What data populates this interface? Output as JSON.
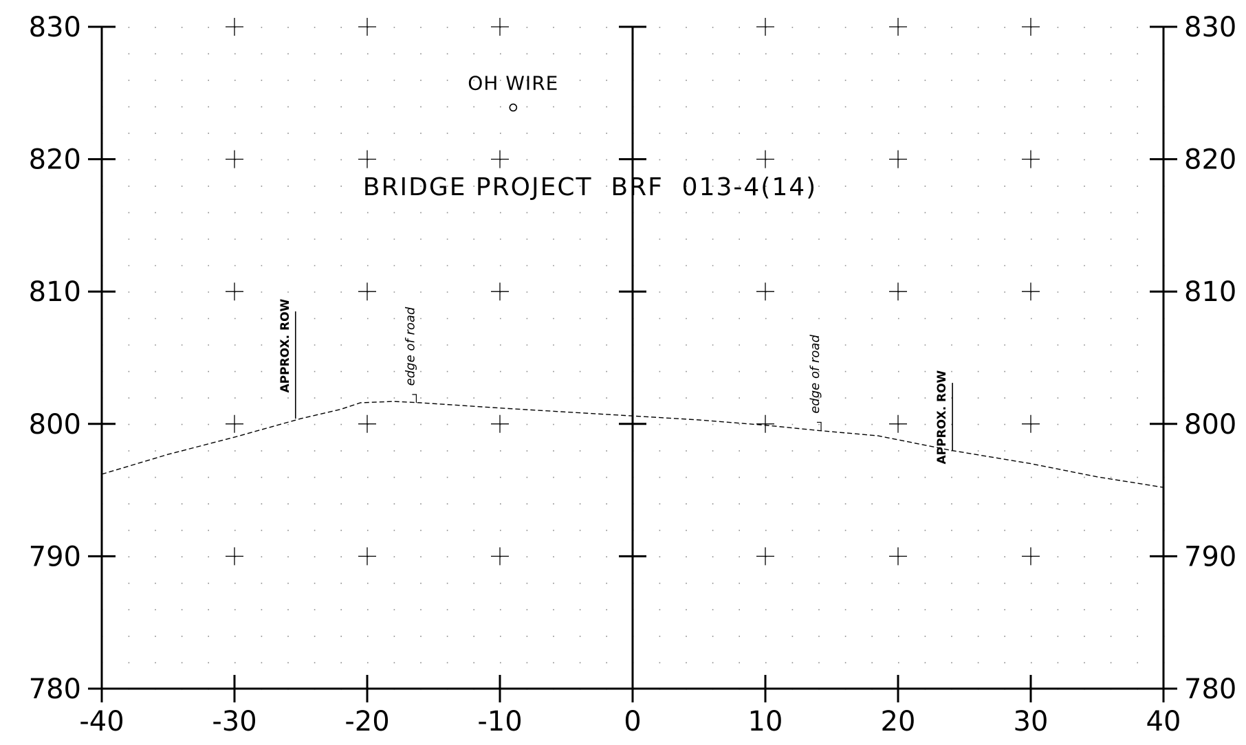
{
  "chart_data": {
    "type": "line",
    "title": "BRIDGE PROJECT  BRF  013-4(14)",
    "xlabel": "",
    "ylabel": "",
    "xlim": [
      -40,
      40
    ],
    "ylim": [
      780,
      830
    ],
    "x_ticks": [
      -40,
      -30,
      -20,
      -10,
      0,
      10,
      20,
      30,
      40
    ],
    "x_tick_labels": [
      "-40",
      "-30",
      "-20",
      "-10",
      "0",
      "10",
      "20",
      "30",
      "40"
    ],
    "y_ticks": [
      780,
      790,
      800,
      810,
      820,
      830
    ],
    "y_tick_labels": [
      "780",
      "790",
      "800",
      "810",
      "820",
      "830"
    ],
    "grid": true,
    "series": [
      {
        "name": "",
        "style": "dashed",
        "x": [
          -40,
          -35,
          -30,
          -25,
          -22,
          -20.5,
          -18,
          -16,
          -10,
          -5,
          0,
          5,
          10,
          14,
          18.5,
          24,
          30,
          35,
          40
        ],
        "y": [
          796.2,
          797.7,
          799.0,
          800.4,
          801.1,
          801.6,
          801.7,
          801.6,
          801.2,
          800.9,
          800.6,
          800.3,
          799.9,
          799.5,
          799.1,
          798.0,
          797.0,
          796.0,
          795.2
        ]
      }
    ],
    "annotations": [
      {
        "id": "oh-wire",
        "text": "OH WIRE",
        "x": -9,
        "y": 823.9
      },
      {
        "id": "row-left",
        "text": "APPROX. ROW",
        "x": -25.4,
        "y_top": 808.5,
        "y_bottom": 800.4
      },
      {
        "id": "edge-left",
        "text": "edge of road",
        "x": -16.3,
        "y": 801.6
      },
      {
        "id": "edge-right",
        "text": "edge of road",
        "x": 14.2,
        "y": 799.5
      },
      {
        "id": "row-right",
        "text": "APPROX. ROW",
        "x": 24.1,
        "y_top": 803.1,
        "y_bottom": 798.0
      }
    ]
  }
}
